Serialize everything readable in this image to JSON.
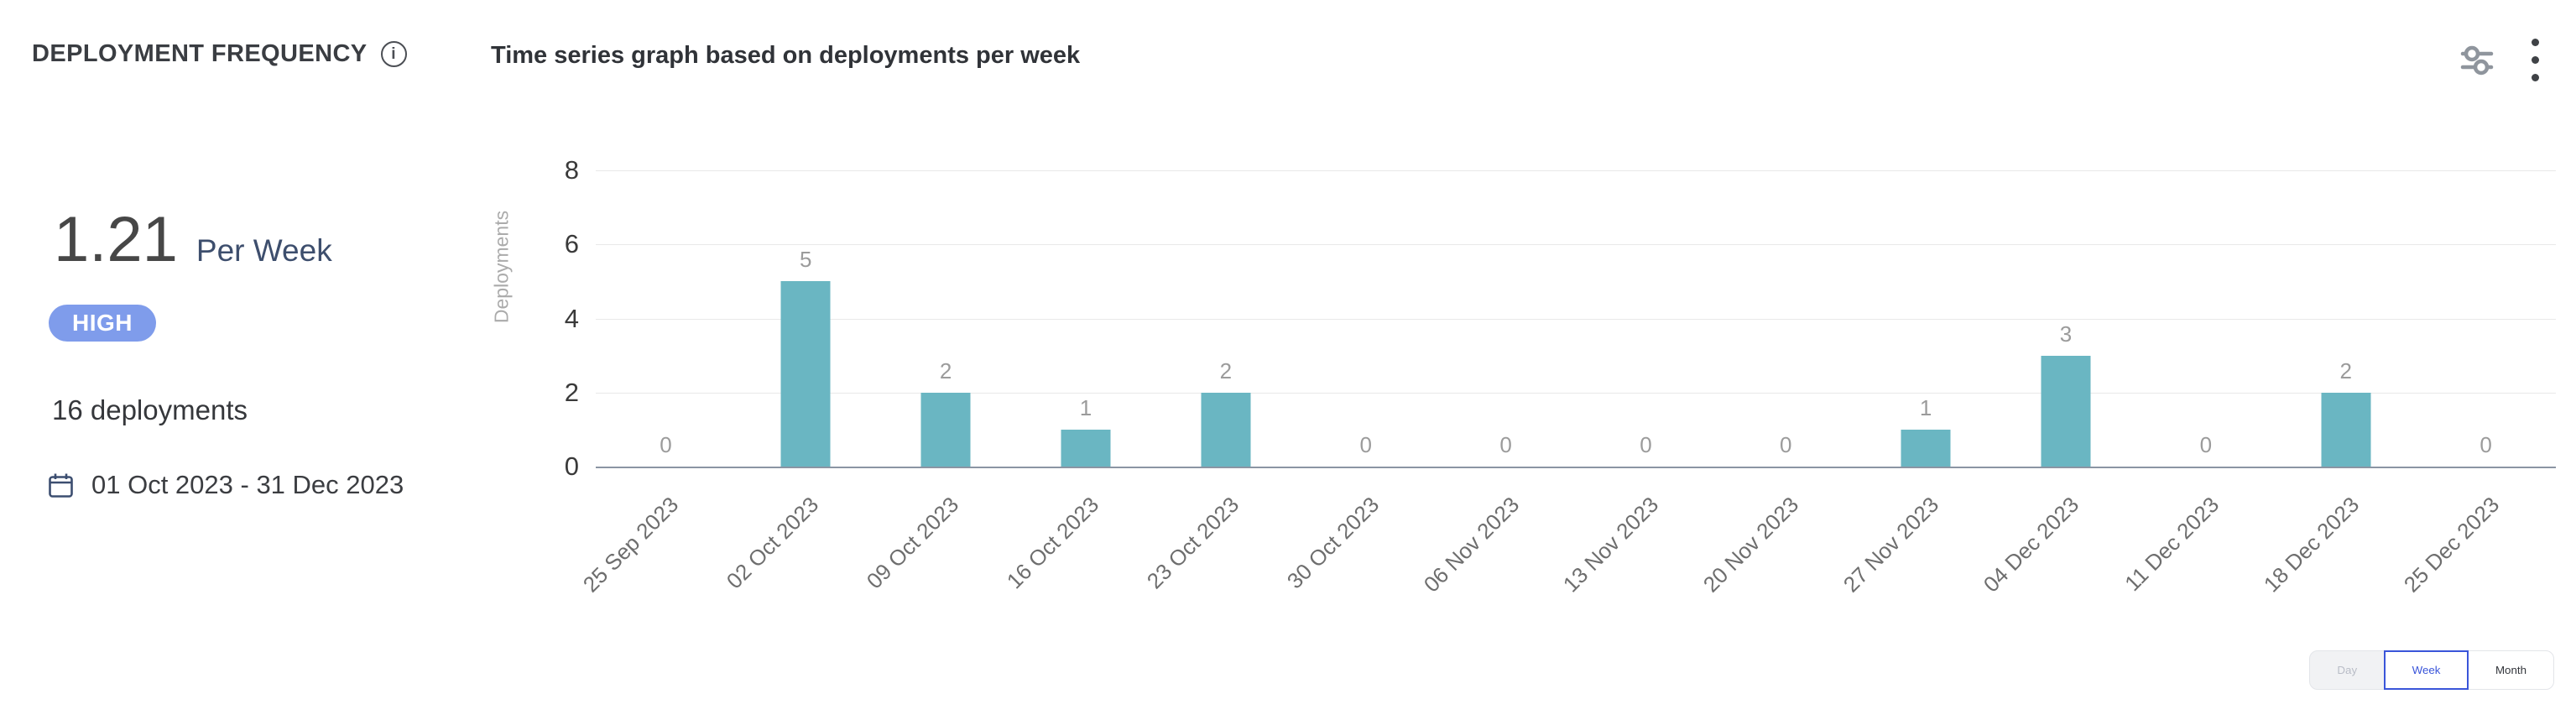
{
  "header": {
    "title": "DEPLOYMENT FREQUENCY",
    "info_icon": "i",
    "subtitle": "Time series graph based on deployments per week",
    "icons": [
      "filter-sliders-icon",
      "kebab-menu-icon"
    ]
  },
  "summary": {
    "value": "1.21",
    "unit": "Per Week",
    "badge": {
      "label": "HIGH",
      "color": "#7f9ceb"
    },
    "total_deployments": "16 deployments",
    "date_range": "01 Oct 2023 - 31 Dec 2023",
    "date_icon": "calendar-icon"
  },
  "chart_data": {
    "type": "bar",
    "title": "Time series graph based on deployments per week",
    "xlabel": "",
    "ylabel": "Deployments",
    "categories": [
      "25 Sep 2023",
      "02 Oct 2023",
      "09 Oct 2023",
      "16 Oct 2023",
      "23 Oct 2023",
      "30 Oct 2023",
      "06 Nov 2023",
      "13 Nov 2023",
      "20 Nov 2023",
      "27 Nov 2023",
      "04 Dec 2023",
      "11 Dec 2023",
      "18 Dec 2023",
      "25 Dec 2023"
    ],
    "values": [
      0,
      5,
      2,
      1,
      2,
      0,
      0,
      0,
      0,
      1,
      3,
      0,
      2,
      0
    ],
    "ylim": [
      0,
      8
    ],
    "yticks": [
      0,
      2,
      4,
      6,
      8
    ],
    "bar_color": "#6ab6c2",
    "grid": true,
    "value_labels": true,
    "legend": "none",
    "x_tick_rotation": -45
  },
  "controls": {
    "granularity": [
      {
        "label": "Day",
        "state": "disabled"
      },
      {
        "label": "Week",
        "state": "selected"
      },
      {
        "label": "Month",
        "state": "normal"
      }
    ]
  }
}
